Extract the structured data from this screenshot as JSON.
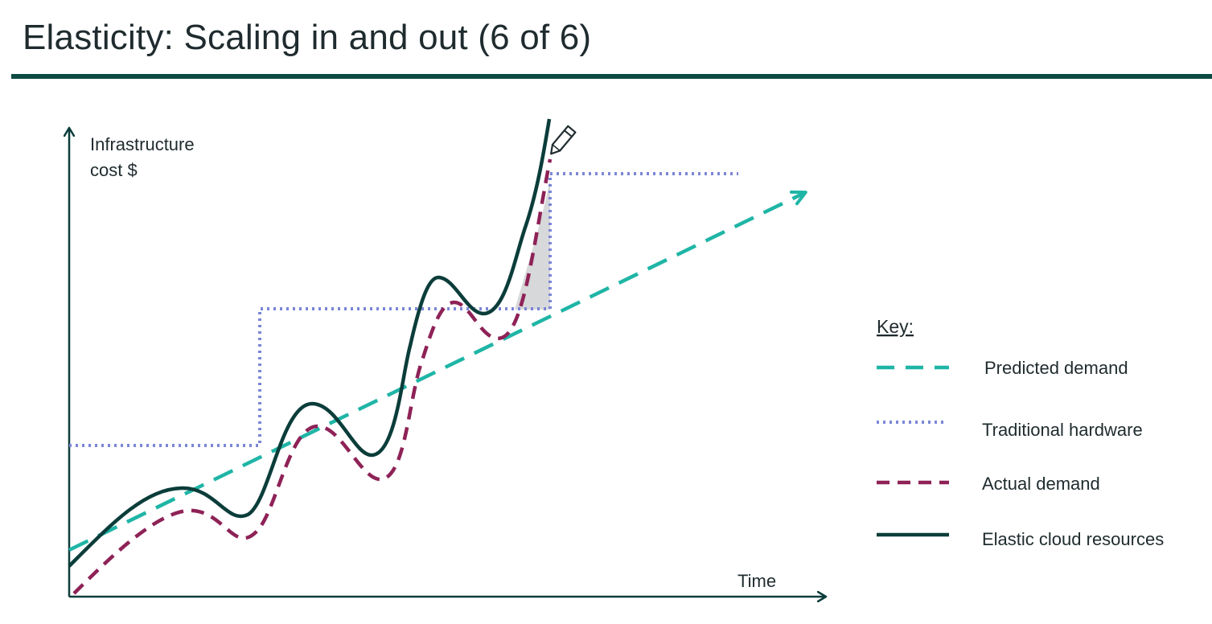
{
  "slide": {
    "title": "Elasticity: Scaling in and out (6 of 6)"
  },
  "diagram": {
    "y_axis_label_line1": "Infrastructure",
    "y_axis_label_line2": "cost $",
    "x_axis_label": "Time",
    "legend": {
      "title": "Key:",
      "items": [
        {
          "label": "Predicted demand",
          "style": "dashed",
          "color": "#1fb5a6"
        },
        {
          "label": "Traditional hardware",
          "style": "dotted",
          "color": "#7b86d6"
        },
        {
          "label": "Actual demand",
          "style": "dashed",
          "color": "#8e2257"
        },
        {
          "label": "Elastic cloud resources",
          "style": "solid",
          "color": "#0b3d3a"
        }
      ]
    },
    "colors": {
      "predicted_demand": "#1fb5a6",
      "traditional_hardware": "#7b86d6",
      "actual_demand": "#8e2257",
      "elastic_cloud": "#0b3d3a",
      "shortfall_fill": "#d7d8da",
      "axis": "#0b3d3a"
    },
    "icons": {
      "pen": "pen-icon"
    }
  }
}
